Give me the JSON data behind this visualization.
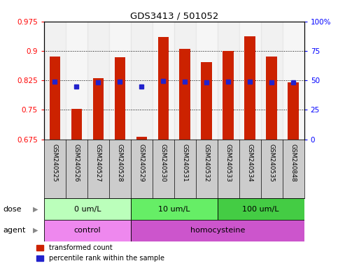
{
  "title": "GDS3413 / 501052",
  "samples": [
    "GSM240525",
    "GSM240526",
    "GSM240527",
    "GSM240528",
    "GSM240529",
    "GSM240530",
    "GSM240531",
    "GSM240532",
    "GSM240533",
    "GSM240534",
    "GSM240535",
    "GSM240848"
  ],
  "transformed_count": [
    0.885,
    0.753,
    0.83,
    0.884,
    0.682,
    0.935,
    0.905,
    0.872,
    0.9,
    0.938,
    0.885,
    0.82
  ],
  "percentile_rank": [
    0.822,
    0.81,
    0.82,
    0.822,
    0.81,
    0.823,
    0.822,
    0.82,
    0.822,
    0.822,
    0.82,
    0.82
  ],
  "ylim_left": [
    0.675,
    0.975
  ],
  "ylim_right": [
    0,
    100
  ],
  "yticks_left": [
    0.675,
    0.75,
    0.825,
    0.9,
    0.975
  ],
  "yticks_right": [
    0,
    25,
    50,
    75,
    100
  ],
  "ytick_labels_left": [
    "0.675",
    "0.75",
    "0.825",
    "0.9",
    "0.975"
  ],
  "ytick_labels_right": [
    "0",
    "25",
    "50",
    "75",
    "100%"
  ],
  "bar_color": "#cc2200",
  "dot_color": "#2222cc",
  "dose_groups": [
    {
      "label": "0 um/L",
      "start": 0,
      "end": 4,
      "color": "#bbffbb"
    },
    {
      "label": "10 um/L",
      "start": 4,
      "end": 8,
      "color": "#66ee66"
    },
    {
      "label": "100 um/L",
      "start": 8,
      "end": 12,
      "color": "#44cc44"
    }
  ],
  "agent_groups": [
    {
      "label": "control",
      "start": 0,
      "end": 4,
      "color": "#ee88ee"
    },
    {
      "label": "homocysteine",
      "start": 4,
      "end": 12,
      "color": "#cc55cc"
    }
  ],
  "dose_label": "dose",
  "agent_label": "agent",
  "legend_items": [
    {
      "label": "transformed count",
      "color": "#cc2200"
    },
    {
      "label": "percentile rank within the sample",
      "color": "#2222cc"
    }
  ],
  "background_color": "#ffffff",
  "bar_bottom": 0.675,
  "bar_width": 0.5,
  "xtick_bg": "#cccccc"
}
